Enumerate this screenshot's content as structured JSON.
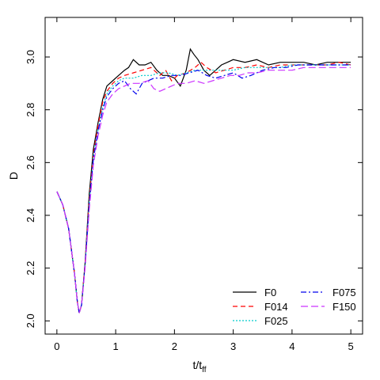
{
  "chart_data": {
    "type": "line",
    "xlabel": "t/t",
    "xlabel_sub": "ff",
    "ylabel": "D",
    "xlim": [
      -0.2,
      5.2
    ],
    "ylim": [
      1.95,
      3.15
    ],
    "xticks": [
      0,
      1,
      2,
      3,
      4,
      5
    ],
    "xtick_labels": [
      "0",
      "1",
      "2",
      "3",
      "4",
      "5"
    ],
    "yticks": [
      2.0,
      2.2,
      2.4,
      2.6,
      2.8,
      3.0
    ],
    "ytick_labels": [
      "2.0",
      "2.2",
      "2.4",
      "2.6",
      "2.8",
      "3.0"
    ],
    "grid": false,
    "legend_position": "bottom-right",
    "series": [
      {
        "name": "F0",
        "color": "#000000",
        "dash": "",
        "points": [
          [
            0,
            2.49
          ],
          [
            0.1,
            2.44
          ],
          [
            0.2,
            2.35
          ],
          [
            0.3,
            2.18
          ],
          [
            0.35,
            2.07
          ],
          [
            0.38,
            2.03
          ],
          [
            0.42,
            2.06
          ],
          [
            0.48,
            2.22
          ],
          [
            0.55,
            2.48
          ],
          [
            0.62,
            2.65
          ],
          [
            0.7,
            2.75
          ],
          [
            0.78,
            2.84
          ],
          [
            0.85,
            2.89
          ],
          [
            0.95,
            2.91
          ],
          [
            1.05,
            2.93
          ],
          [
            1.15,
            2.95
          ],
          [
            1.22,
            2.96
          ],
          [
            1.3,
            2.99
          ],
          [
            1.4,
            2.97
          ],
          [
            1.5,
            2.97
          ],
          [
            1.6,
            2.98
          ],
          [
            1.7,
            2.95
          ],
          [
            1.8,
            2.93
          ],
          [
            1.9,
            2.93
          ],
          [
            2.0,
            2.92
          ],
          [
            2.1,
            2.89
          ],
          [
            2.2,
            2.95
          ],
          [
            2.27,
            3.03
          ],
          [
            2.33,
            3.01
          ],
          [
            2.4,
            2.99
          ],
          [
            2.5,
            2.95
          ],
          [
            2.6,
            2.93
          ],
          [
            2.7,
            2.95
          ],
          [
            2.8,
            2.97
          ],
          [
            2.9,
            2.98
          ],
          [
            3.0,
            2.99
          ],
          [
            3.2,
            2.98
          ],
          [
            3.4,
            2.99
          ],
          [
            3.6,
            2.97
          ],
          [
            3.8,
            2.98
          ],
          [
            4.0,
            2.98
          ],
          [
            4.2,
            2.98
          ],
          [
            4.4,
            2.97
          ],
          [
            4.6,
            2.98
          ],
          [
            4.8,
            2.98
          ],
          [
            5.0,
            2.98
          ]
        ]
      },
      {
        "name": "F014",
        "color": "#ff0000",
        "dash": "6,4",
        "points": [
          [
            0,
            2.49
          ],
          [
            0.1,
            2.44
          ],
          [
            0.2,
            2.35
          ],
          [
            0.3,
            2.18
          ],
          [
            0.35,
            2.07
          ],
          [
            0.38,
            2.03
          ],
          [
            0.42,
            2.06
          ],
          [
            0.48,
            2.22
          ],
          [
            0.55,
            2.46
          ],
          [
            0.62,
            2.63
          ],
          [
            0.7,
            2.74
          ],
          [
            0.78,
            2.83
          ],
          [
            0.85,
            2.87
          ],
          [
            0.95,
            2.9
          ],
          [
            1.05,
            2.92
          ],
          [
            1.15,
            2.93
          ],
          [
            1.3,
            2.94
          ],
          [
            1.45,
            2.95
          ],
          [
            1.6,
            2.96
          ],
          [
            1.75,
            2.93
          ],
          [
            1.85,
            2.95
          ],
          [
            1.95,
            2.91
          ],
          [
            2.05,
            2.93
          ],
          [
            2.2,
            2.94
          ],
          [
            2.35,
            2.96
          ],
          [
            2.45,
            2.98
          ],
          [
            2.55,
            2.96
          ],
          [
            2.7,
            2.94
          ],
          [
            2.85,
            2.95
          ],
          [
            3.0,
            2.96
          ],
          [
            3.2,
            2.96
          ],
          [
            3.4,
            2.97
          ],
          [
            3.6,
            2.96
          ],
          [
            3.8,
            2.97
          ],
          [
            4.0,
            2.97
          ],
          [
            4.2,
            2.97
          ],
          [
            4.4,
            2.97
          ],
          [
            4.6,
            2.97
          ],
          [
            4.8,
            2.98
          ],
          [
            5.0,
            2.97
          ]
        ]
      },
      {
        "name": "F025",
        "color": "#00cccc",
        "dash": "2,2",
        "points": [
          [
            0,
            2.49
          ],
          [
            0.1,
            2.44
          ],
          [
            0.2,
            2.35
          ],
          [
            0.3,
            2.18
          ],
          [
            0.35,
            2.07
          ],
          [
            0.38,
            2.03
          ],
          [
            0.42,
            2.06
          ],
          [
            0.48,
            2.21
          ],
          [
            0.55,
            2.45
          ],
          [
            0.62,
            2.62
          ],
          [
            0.7,
            2.72
          ],
          [
            0.78,
            2.81
          ],
          [
            0.85,
            2.86
          ],
          [
            0.95,
            2.89
          ],
          [
            1.05,
            2.91
          ],
          [
            1.15,
            2.92
          ],
          [
            1.3,
            2.92
          ],
          [
            1.45,
            2.93
          ],
          [
            1.6,
            2.93
          ],
          [
            1.75,
            2.94
          ],
          [
            1.9,
            2.94
          ],
          [
            2.05,
            2.93
          ],
          [
            2.2,
            2.94
          ],
          [
            2.35,
            2.95
          ],
          [
            2.5,
            2.95
          ],
          [
            2.65,
            2.95
          ],
          [
            2.8,
            2.95
          ],
          [
            3.0,
            2.95
          ],
          [
            3.2,
            2.96
          ],
          [
            3.4,
            2.96
          ],
          [
            3.6,
            2.96
          ],
          [
            3.8,
            2.96
          ],
          [
            4.0,
            2.97
          ],
          [
            4.2,
            2.97
          ],
          [
            4.4,
            2.97
          ],
          [
            4.6,
            2.97
          ],
          [
            4.8,
            2.97
          ],
          [
            5.0,
            2.97
          ]
        ]
      },
      {
        "name": "F075",
        "color": "#0000ee",
        "dash": "7,3,2,3",
        "points": [
          [
            0,
            2.49
          ],
          [
            0.1,
            2.44
          ],
          [
            0.2,
            2.35
          ],
          [
            0.3,
            2.18
          ],
          [
            0.35,
            2.07
          ],
          [
            0.38,
            2.03
          ],
          [
            0.42,
            2.06
          ],
          [
            0.48,
            2.21
          ],
          [
            0.55,
            2.44
          ],
          [
            0.62,
            2.61
          ],
          [
            0.7,
            2.72
          ],
          [
            0.78,
            2.8
          ],
          [
            0.85,
            2.85
          ],
          [
            0.95,
            2.88
          ],
          [
            1.05,
            2.9
          ],
          [
            1.15,
            2.91
          ],
          [
            1.25,
            2.88
          ],
          [
            1.35,
            2.86
          ],
          [
            1.45,
            2.9
          ],
          [
            1.55,
            2.91
          ],
          [
            1.65,
            2.92
          ],
          [
            1.8,
            2.92
          ],
          [
            1.95,
            2.93
          ],
          [
            2.1,
            2.93
          ],
          [
            2.25,
            2.94
          ],
          [
            2.4,
            2.95
          ],
          [
            2.55,
            2.93
          ],
          [
            2.7,
            2.92
          ],
          [
            2.85,
            2.93
          ],
          [
            3.0,
            2.94
          ],
          [
            3.15,
            2.92
          ],
          [
            3.3,
            2.93
          ],
          [
            3.5,
            2.95
          ],
          [
            3.7,
            2.96
          ],
          [
            3.9,
            2.96
          ],
          [
            4.1,
            2.97
          ],
          [
            4.3,
            2.97
          ],
          [
            4.5,
            2.97
          ],
          [
            4.7,
            2.97
          ],
          [
            4.9,
            2.97
          ],
          [
            5.0,
            2.97
          ]
        ]
      },
      {
        "name": "F150",
        "color": "#cc33ff",
        "dash": "9,4",
        "points": [
          [
            0,
            2.49
          ],
          [
            0.1,
            2.44
          ],
          [
            0.2,
            2.35
          ],
          [
            0.3,
            2.18
          ],
          [
            0.35,
            2.07
          ],
          [
            0.38,
            2.03
          ],
          [
            0.42,
            2.06
          ],
          [
            0.48,
            2.2
          ],
          [
            0.55,
            2.42
          ],
          [
            0.62,
            2.59
          ],
          [
            0.7,
            2.7
          ],
          [
            0.78,
            2.78
          ],
          [
            0.85,
            2.83
          ],
          [
            0.95,
            2.86
          ],
          [
            1.05,
            2.88
          ],
          [
            1.15,
            2.89
          ],
          [
            1.25,
            2.9
          ],
          [
            1.4,
            2.9
          ],
          [
            1.55,
            2.91
          ],
          [
            1.65,
            2.88
          ],
          [
            1.75,
            2.87
          ],
          [
            1.85,
            2.88
          ],
          [
            1.95,
            2.89
          ],
          [
            2.05,
            2.9
          ],
          [
            2.2,
            2.9
          ],
          [
            2.35,
            2.91
          ],
          [
            2.5,
            2.9
          ],
          [
            2.65,
            2.91
          ],
          [
            2.8,
            2.92
          ],
          [
            2.95,
            2.93
          ],
          [
            3.1,
            2.93
          ],
          [
            3.25,
            2.94
          ],
          [
            3.4,
            2.94
          ],
          [
            3.6,
            2.95
          ],
          [
            3.8,
            2.95
          ],
          [
            4.0,
            2.95
          ],
          [
            4.2,
            2.96
          ],
          [
            4.4,
            2.96
          ],
          [
            4.6,
            2.96
          ],
          [
            4.8,
            2.96
          ],
          [
            5.0,
            2.96
          ]
        ]
      }
    ]
  }
}
